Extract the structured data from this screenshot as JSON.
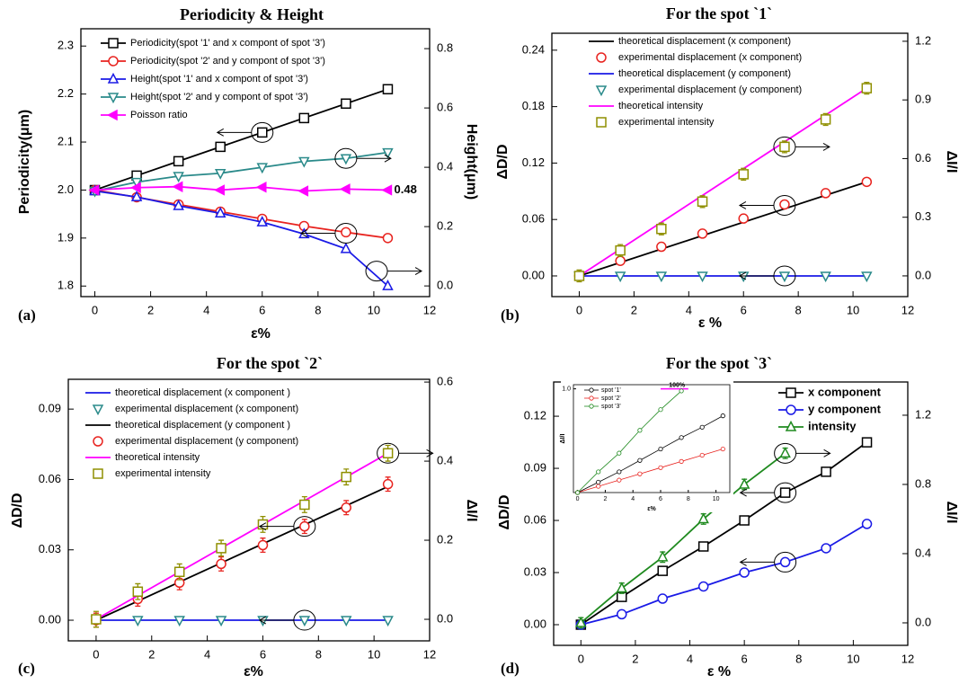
{
  "chart_data": [
    {
      "type": "line",
      "title": "Periodicity & Height",
      "panel_label": "(a)",
      "x_label": "ε%",
      "y_label": "Periodicity(μm)",
      "y2_label": "Height(μm)",
      "x": [
        0,
        1.5,
        3,
        4.5,
        6,
        7.5,
        9,
        10.5
      ],
      "xlim": [
        -0.5,
        12
      ],
      "xticks": [
        0,
        2,
        4,
        6,
        8,
        10,
        12
      ],
      "ylim": [
        1.778,
        2.336
      ],
      "yticks": [
        1.8,
        1.9,
        {
          "value": 2,
          "label": "2.0"
        },
        2.1,
        2.2,
        2.3
      ],
      "y2lim": [
        -0.036,
        0.867
      ],
      "y2ticks": [
        {
          "value": 0,
          "label": "0.0"
        },
        0.2,
        0.4,
        0.6,
        0.8
      ],
      "legend": "upper left",
      "annotation": "0.48",
      "series": [
        {
          "name": "Periodicity(spot '1' and x compont of spot '3')",
          "color": "#000000",
          "line": true,
          "marker": "square",
          "values": [
            2.0,
            2.03,
            2.06,
            2.09,
            2.12,
            2.15,
            2.18,
            2.21
          ]
        },
        {
          "name": "Periodicity(spot '2' and y compont of spot '3')",
          "color": "#e8231f",
          "line": true,
          "marker": "circle",
          "values": [
            2.0,
            1.985,
            1.97,
            1.955,
            1.94,
            1.925,
            1.912,
            1.9
          ]
        },
        {
          "name": "Height(spot '1' and x compont of spot '3')",
          "color": "#1a1ae6",
          "line": true,
          "marker": "triangle",
          "axis": "y2",
          "values": [
            0.32,
            0.3,
            0.27,
            0.245,
            0.215,
            0.175,
            0.125,
            0.0
          ]
        },
        {
          "name": "Height(spot '2' and y compont of spot '3')",
          "color": "#2a8a8a",
          "line": true,
          "marker": "tri-down",
          "axis": "y2",
          "values": [
            0.32,
            0.35,
            0.37,
            0.38,
            0.4,
            0.42,
            0.43,
            0.45
          ]
        },
        {
          "name": "Poisson ratio",
          "color": "#ff00ff",
          "line": true,
          "marker": "tri-left",
          "marker_fill": "#ff00ff",
          "values": [
            2.0,
            2.005,
            2.007,
            2.0,
            2.006,
            1.998,
            2.002,
            2.0
          ]
        }
      ]
    },
    {
      "type": "line",
      "title": "For the spot `1`",
      "panel_label": "(b)",
      "x_label": "ε %",
      "y_label": "ΔD/D",
      "y2_label": "ΔI/I",
      "x": [
        0,
        1.5,
        3,
        4.5,
        6,
        7.5,
        9,
        10.5
      ],
      "xlim": [
        -1,
        12
      ],
      "xticks": [
        0,
        2,
        4,
        6,
        8,
        10,
        12
      ],
      "ylim": [
        -0.022,
        0.258
      ],
      "yticks": [
        {
          "value": 0,
          "label": "0.00"
        },
        0.06,
        0.12,
        0.18,
        0.24
      ],
      "y2lim": [
        -0.106,
        1.241
      ],
      "y2ticks": [
        {
          "value": 0,
          "label": "0.0"
        },
        0.3,
        0.6,
        0.9,
        1.2
      ],
      "legend": "upper left",
      "series": [
        {
          "name": "theoretical displacement (x component)",
          "color": "#000000",
          "line": true,
          "x": [
            0,
            10.5
          ],
          "values": [
            0,
            0.1
          ]
        },
        {
          "name": "experimental displacement (x component)",
          "color": "#e8231f",
          "marker": "circle",
          "values": [
            0,
            0.016,
            0.031,
            0.045,
            0.061,
            0.076,
            0.088,
            0.1
          ],
          "errors": [
            0.004,
            0.004,
            0.004,
            0.004,
            0.004,
            0.004,
            0.004,
            0.004
          ]
        },
        {
          "name": "theoretical displacement (y component)",
          "color": "#1a1ae6",
          "line": true,
          "x": [
            0,
            10.5
          ],
          "values": [
            0,
            0
          ]
        },
        {
          "name": "experimental displacement (y component)",
          "color": "#2a8a8a",
          "marker": "tri-down",
          "values": [
            0,
            0,
            0,
            0,
            0,
            0,
            0,
            0
          ]
        },
        {
          "name": "theoretical intensity",
          "color": "#ff00ff",
          "line": true,
          "axis": "y2",
          "x": [
            0,
            10.5
          ],
          "values": [
            0,
            0.96
          ]
        },
        {
          "name": "experimental intensity",
          "color": "#8f8f00",
          "marker": "square",
          "axis": "y2",
          "values": [
            0,
            0.13,
            0.24,
            0.38,
            0.52,
            0.66,
            0.8,
            0.96
          ],
          "errors": [
            0.03,
            0.03,
            0.03,
            0.03,
            0.03,
            0.03,
            0.03,
            0.03
          ]
        }
      ]
    },
    {
      "type": "line",
      "title": "For the spot `2`",
      "panel_label": "(c)",
      "x_label": "ε%",
      "y_label": "ΔD/D",
      "y2_label": "ΔI/I",
      "x": [
        0,
        1.5,
        3,
        4.5,
        6,
        7.5,
        9,
        10.5
      ],
      "xlim": [
        -1,
        12
      ],
      "xticks": [
        0,
        2,
        4,
        6,
        8,
        10,
        12
      ],
      "ylim": [
        -0.0088,
        0.1027
      ],
      "yticks": [
        {
          "value": 0,
          "label": "0.00"
        },
        0.03,
        0.06,
        0.09
      ],
      "y2lim": [
        -0.0545,
        0.607
      ],
      "y2ticks": [
        {
          "value": 0,
          "label": "0.0"
        },
        0.2,
        0.4,
        0.6
      ],
      "legend": "upper left",
      "series": [
        {
          "name": "theoretical displacement (x component )",
          "color": "#1a1ae6",
          "line": true,
          "x": [
            0,
            10.5
          ],
          "values": [
            0,
            0
          ]
        },
        {
          "name": "experimental displacement (x component)",
          "color": "#2a8a8a",
          "marker": "tri-down",
          "values": [
            0,
            0,
            0,
            0,
            0,
            0,
            0,
            0
          ]
        },
        {
          "name": "theoretical displacement (y component )",
          "color": "#000000",
          "line": true,
          "x": [
            0,
            10.5
          ],
          "values": [
            0,
            0.057
          ]
        },
        {
          "name": "experimental displacement (y component)",
          "color": "#e8231f",
          "marker": "circle",
          "values": [
            0,
            0.009,
            0.016,
            0.024,
            0.032,
            0.04,
            0.048,
            0.058
          ],
          "errors": [
            0.003,
            0.003,
            0.003,
            0.003,
            0.003,
            0.003,
            0.003,
            0.003
          ]
        },
        {
          "name": "theoretical intensity",
          "color": "#ff00ff",
          "line": true,
          "axis": "y2",
          "x": [
            0,
            10.5
          ],
          "values": [
            0,
            0.42
          ]
        },
        {
          "name": "experimental intensity",
          "color": "#8f8f00",
          "marker": "square",
          "axis": "y2",
          "values": [
            0,
            0.07,
            0.12,
            0.18,
            0.24,
            0.29,
            0.36,
            0.42
          ],
          "errors": [
            0.02,
            0.02,
            0.02,
            0.02,
            0.02,
            0.02,
            0.02,
            0.02
          ]
        }
      ]
    },
    {
      "type": "line",
      "title": "For the spot `3`",
      "panel_label": "(d)",
      "x_label": "ε %",
      "y_label": "ΔD/D",
      "y2_label": "ΔI/I",
      "x": [
        0,
        1.5,
        3,
        4.5,
        6,
        7.5,
        9,
        10.5
      ],
      "xlim": [
        -1,
        12
      ],
      "xticks": [
        0,
        2,
        4,
        6,
        8,
        10,
        12
      ],
      "ylim": [
        -0.0119,
        0.1397
      ],
      "yticks": [
        {
          "value": 0,
          "label": "0.00"
        },
        0.03,
        0.06,
        0.09,
        0.12
      ],
      "y2lim": [
        -0.13,
        1.392
      ],
      "y2ticks": [
        {
          "value": 0,
          "label": "0.0"
        },
        0.4,
        0.8,
        1.2
      ],
      "legend": "upper right",
      "series": [
        {
          "name": "x component",
          "color": "#000000",
          "line": true,
          "marker": "square",
          "values": [
            0,
            0.016,
            0.031,
            0.045,
            0.06,
            0.076,
            0.088,
            0.105
          ],
          "errors": [
            0.002,
            0.002,
            0.002,
            0.002,
            0.002,
            0.002,
            0.002,
            0.002
          ]
        },
        {
          "name": "y component",
          "color": "#1a1ae6",
          "line": true,
          "marker": "circle",
          "values": [
            0,
            0.006,
            0.015,
            0.022,
            0.03,
            0.036,
            0.044,
            0.058
          ],
          "errors": [
            0.002,
            0.002,
            0.002,
            0.002,
            0.002,
            0.002,
            0.002,
            0.002
          ]
        },
        {
          "name": "intensity",
          "color": "#1f8a1f",
          "line": true,
          "marker": "triangle",
          "axis": "y2",
          "x": [
            0,
            1.5,
            3,
            4.5,
            6,
            7.5
          ],
          "values": [
            0,
            0.2,
            0.38,
            0.6,
            0.8,
            0.98
          ],
          "errors": [
            0.03,
            0.03,
            0.03,
            0.03,
            0.03,
            0.03
          ]
        }
      ]
    },
    {
      "type": "line",
      "x_label": "ε%",
      "y_label": "ΔI/I",
      "annotation": "100%",
      "x": [
        0,
        1.5,
        3,
        4.5,
        6,
        7.5,
        9,
        10.5
      ],
      "xlim": [
        -0.3,
        11
      ],
      "xticks": [
        0,
        2,
        4,
        6,
        8,
        10
      ],
      "ylim": [
        0,
        1.04
      ],
      "yticks": [
        {
          "value": 1,
          "label": "1.0"
        }
      ],
      "legend": "upper left",
      "series": [
        {
          "name": "spot '1'",
          "color": "#000000",
          "line": true,
          "marker": "circle",
          "values": [
            0,
            0.1,
            0.2,
            0.31,
            0.42,
            0.53,
            0.63,
            0.74
          ]
        },
        {
          "name": "spot '2'",
          "color": "#e8231f",
          "line": true,
          "marker": "circle",
          "values": [
            0,
            0.06,
            0.12,
            0.18,
            0.24,
            0.3,
            0.36,
            0.42
          ]
        },
        {
          "name": "spot '3'",
          "color": "#1f8a1f",
          "line": true,
          "marker": "circle",
          "values": [
            0,
            0.2,
            0.38,
            0.6,
            0.8,
            0.98,
            null,
            null
          ]
        }
      ]
    }
  ]
}
